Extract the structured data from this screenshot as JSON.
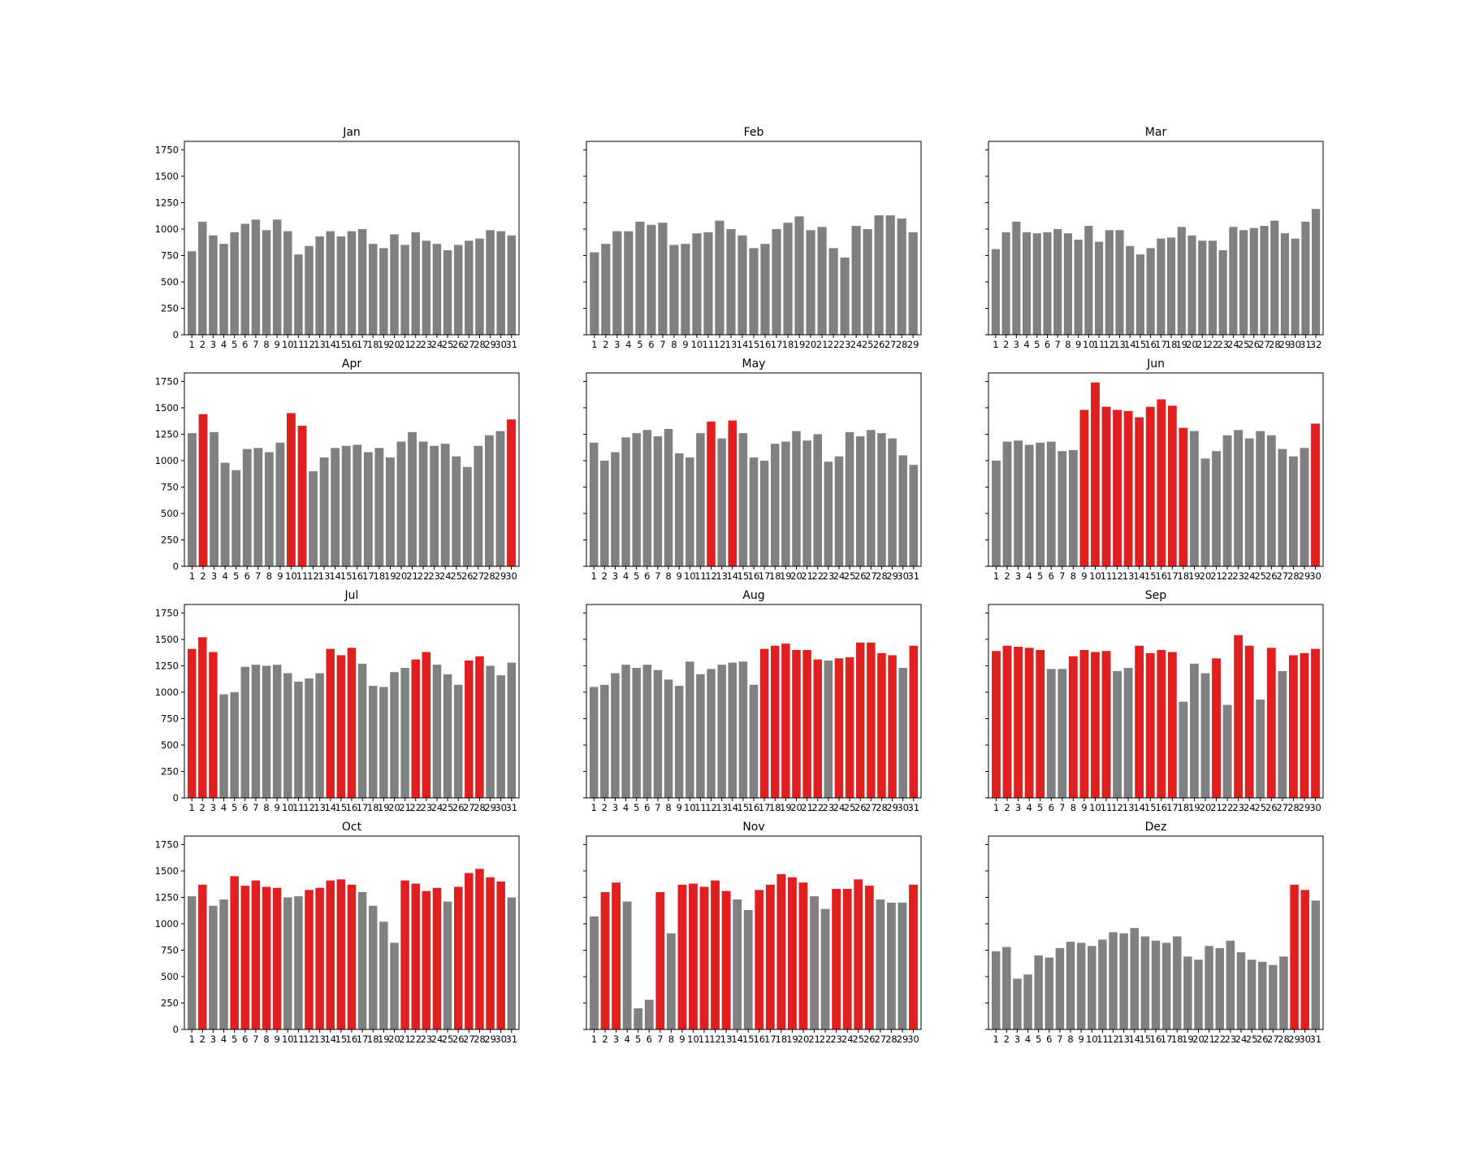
{
  "chart_data": {
    "type": "bar",
    "layout": "4x3 grid of small multiples, shared y-axis",
    "ylim": [
      0,
      1830
    ],
    "yticks": [
      0,
      250,
      500,
      750,
      1000,
      1250,
      1500,
      1750
    ],
    "grid": false,
    "legend": "none",
    "colors": {
      "normal": "#808080",
      "highlight": "#e02020"
    },
    "panels": [
      {
        "title": "Jan",
        "values": [
          790,
          1070,
          940,
          860,
          970,
          1050,
          1090,
          990,
          1090,
          980,
          760,
          840,
          930,
          980,
          930,
          980,
          1000,
          860,
          820,
          950,
          850,
          970,
          890,
          860,
          800,
          850,
          890,
          910,
          990,
          980,
          940
        ],
        "highlight": []
      },
      {
        "title": "Feb",
        "values": [
          780,
          860,
          980,
          980,
          1070,
          1040,
          1060,
          850,
          860,
          960,
          970,
          1080,
          1000,
          940,
          820,
          860,
          1000,
          1060,
          1120,
          990,
          1020,
          820,
          730,
          1030,
          1000,
          1130,
          1130,
          1100,
          970
        ],
        "highlight": []
      },
      {
        "title": "Mar",
        "values": [
          810,
          970,
          1070,
          970,
          960,
          970,
          1000,
          960,
          900,
          1030,
          880,
          990,
          990,
          840,
          760,
          820,
          910,
          920,
          1020,
          940,
          890,
          890,
          800,
          1020,
          990,
          1010,
          1030,
          1080,
          960,
          910,
          1070,
          1190
        ],
        "highlight": []
      },
      {
        "title": "Apr",
        "values": [
          1260,
          1440,
          1270,
          980,
          910,
          1110,
          1120,
          1080,
          1170,
          1450,
          1330,
          900,
          1030,
          1120,
          1140,
          1150,
          1080,
          1120,
          1030,
          1180,
          1270,
          1180,
          1140,
          1160,
          1040,
          940,
          1140,
          1240,
          1280,
          1390
        ],
        "highlight": [
          2,
          10,
          11,
          30
        ]
      },
      {
        "title": "May",
        "values": [
          1170,
          1000,
          1080,
          1220,
          1260,
          1290,
          1230,
          1300,
          1070,
          1030,
          1260,
          1370,
          1210,
          1380,
          1260,
          1030,
          1000,
          1160,
          1180,
          1280,
          1190,
          1250,
          990,
          1040,
          1270,
          1230,
          1290,
          1260,
          1210,
          1050,
          960
        ],
        "highlight": [
          12,
          14
        ]
      },
      {
        "title": "Jun",
        "values": [
          1000,
          1180,
          1190,
          1150,
          1170,
          1180,
          1090,
          1100,
          1480,
          1740,
          1510,
          1480,
          1470,
          1410,
          1510,
          1580,
          1520,
          1310,
          1280,
          1020,
          1090,
          1240,
          1290,
          1210,
          1280,
          1240,
          1110,
          1040,
          1120,
          1350
        ],
        "highlight": [
          9,
          10,
          11,
          12,
          13,
          14,
          15,
          16,
          17,
          18,
          30
        ]
      },
      {
        "title": "Jul",
        "values": [
          1410,
          1520,
          1380,
          980,
          1000,
          1240,
          1260,
          1250,
          1260,
          1180,
          1100,
          1130,
          1180,
          1410,
          1350,
          1420,
          1270,
          1060,
          1050,
          1190,
          1230,
          1310,
          1380,
          1260,
          1170,
          1070,
          1300,
          1340,
          1250,
          1160,
          1280
        ],
        "highlight": [
          1,
          2,
          3,
          14,
          15,
          16,
          22,
          23,
          27,
          28
        ]
      },
      {
        "title": "Aug",
        "values": [
          1050,
          1070,
          1180,
          1260,
          1230,
          1260,
          1210,
          1120,
          1060,
          1290,
          1170,
          1220,
          1260,
          1280,
          1290,
          1070,
          1410,
          1440,
          1460,
          1400,
          1400,
          1310,
          1300,
          1320,
          1330,
          1470,
          1470,
          1370,
          1350,
          1230,
          1440
        ],
        "highlight": [
          17,
          18,
          19,
          20,
          21,
          22,
          24,
          25,
          26,
          27,
          28,
          29,
          31
        ]
      },
      {
        "title": "Sep",
        "values": [
          1390,
          1440,
          1430,
          1420,
          1400,
          1220,
          1220,
          1340,
          1400,
          1380,
          1390,
          1200,
          1230,
          1440,
          1370,
          1400,
          1380,
          910,
          1270,
          1180,
          1320,
          880,
          1540,
          1440,
          930,
          1420,
          1200,
          1350,
          1370,
          1410
        ],
        "highlight": [
          1,
          2,
          3,
          4,
          5,
          8,
          9,
          10,
          11,
          14,
          15,
          16,
          17,
          21,
          23,
          24,
          26,
          28,
          29,
          30
        ]
      },
      {
        "title": "Oct",
        "values": [
          1260,
          1370,
          1170,
          1230,
          1450,
          1360,
          1410,
          1350,
          1340,
          1250,
          1260,
          1320,
          1340,
          1410,
          1420,
          1370,
          1300,
          1170,
          1020,
          820,
          1410,
          1380,
          1310,
          1340,
          1210,
          1350,
          1480,
          1520,
          1440,
          1400,
          1250
        ],
        "highlight": [
          2,
          5,
          6,
          7,
          8,
          9,
          12,
          13,
          14,
          15,
          16,
          21,
          22,
          23,
          24,
          26,
          27,
          28,
          29,
          30
        ]
      },
      {
        "title": "Nov",
        "values": [
          1070,
          1300,
          1390,
          1210,
          200,
          280,
          1300,
          910,
          1370,
          1380,
          1350,
          1410,
          1310,
          1230,
          1130,
          1320,
          1370,
          1470,
          1440,
          1390,
          1260,
          1140,
          1330,
          1330,
          1420,
          1360,
          1230,
          1200,
          1200,
          1370
        ],
        "highlight": [
          2,
          3,
          7,
          9,
          10,
          11,
          12,
          13,
          16,
          17,
          18,
          19,
          20,
          23,
          24,
          25,
          26,
          30
        ]
      },
      {
        "title": "Dez",
        "values": [
          740,
          780,
          480,
          520,
          700,
          680,
          770,
          830,
          820,
          790,
          850,
          920,
          910,
          960,
          880,
          840,
          820,
          880,
          690,
          660,
          790,
          770,
          840,
          730,
          660,
          640,
          610,
          690,
          1370,
          1320,
          1220
        ],
        "highlight": [
          29,
          30
        ]
      }
    ]
  }
}
